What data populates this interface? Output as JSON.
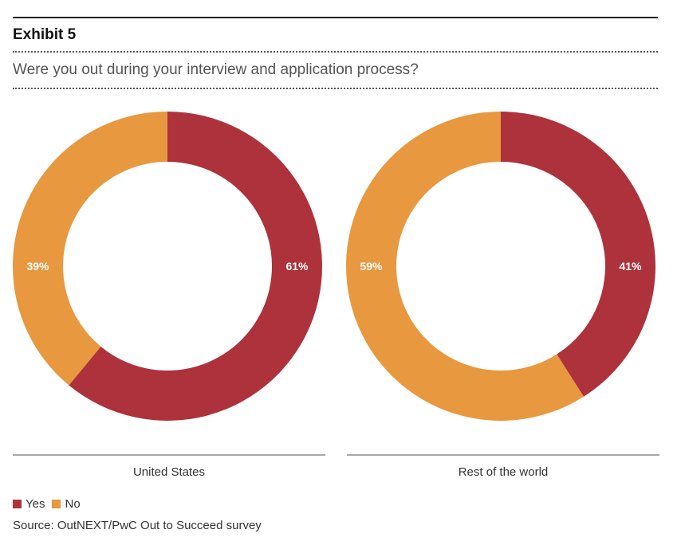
{
  "header": {
    "exhibit": "Exhibit 5",
    "question": "Were you out during your interview and application process?"
  },
  "colors": {
    "yes": "#ad323b",
    "no": "#e8983e"
  },
  "chart_data": {
    "type": "pie",
    "variant": "donut",
    "title": "Were you out during your interview and application process?",
    "series_labels": [
      "Yes",
      "No"
    ],
    "charts": [
      {
        "name": "United States",
        "slices": [
          {
            "label": "Yes",
            "value": 61,
            "text": "61%"
          },
          {
            "label": "No",
            "value": 39,
            "text": "39%"
          }
        ]
      },
      {
        "name": "Rest of the world",
        "slices": [
          {
            "label": "Yes",
            "value": 41,
            "text": "41%"
          },
          {
            "label": "No",
            "value": 59,
            "text": "59%"
          }
        ]
      }
    ]
  },
  "legend": {
    "yes": "Yes",
    "no": "No"
  },
  "source": "Source: OutNEXT/PwC Out to Succeed survey"
}
